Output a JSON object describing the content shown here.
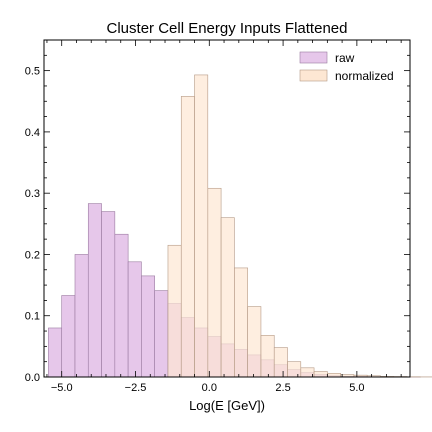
{
  "chart_data": {
    "type": "bar",
    "title": "Cluster Cell Energy Inputs Flattened",
    "xlabel": "Log(E [GeV])",
    "ylabel": "",
    "xlim": [
      -5.6,
      6.8
    ],
    "ylim": [
      0,
      0.55
    ],
    "xticks": [
      -5.0,
      -2.5,
      0.0,
      2.5,
      5.0
    ],
    "xtick_labels": [
      "−5.0",
      "−2.5",
      "0.0",
      "2.5",
      "5.0"
    ],
    "yticks": [
      0.0,
      0.1,
      0.2,
      0.3,
      0.4,
      0.5
    ],
    "ytick_labels": [
      "0.0",
      "0.1",
      "0.2",
      "0.3",
      "0.4",
      "0.5"
    ],
    "grid": false,
    "legend_position": "top-right",
    "bin_width": 0.45,
    "series": [
      {
        "name": "raw",
        "color": "#e6c7ea",
        "edge": "#9a7aa0",
        "bin_start": -5.45,
        "values": [
          0.08,
          0.133,
          0.2,
          0.283,
          0.27,
          0.233,
          0.188,
          0.165,
          0.141,
          0.12,
          0.097,
          0.08,
          0.066,
          0.054,
          0.045,
          0.036,
          0.028,
          0.02,
          0.012,
          0.007,
          0.004,
          0.002,
          0.001,
          0.001,
          0.0005,
          0.0003,
          0.0002,
          0.0001
        ]
      },
      {
        "name": "normalized",
        "color": "#fde7d3",
        "edge": "#b59a86",
        "bin_start": -1.4,
        "values": [
          0.215,
          0.458,
          0.493,
          0.308,
          0.26,
          0.178,
          0.115,
          0.068,
          0.048,
          0.025,
          0.015,
          0.009,
          0.006,
          0.004,
          0.003,
          0.002,
          0.001,
          0.0008,
          0.0004,
          0.0002,
          0.0001
        ]
      }
    ]
  }
}
